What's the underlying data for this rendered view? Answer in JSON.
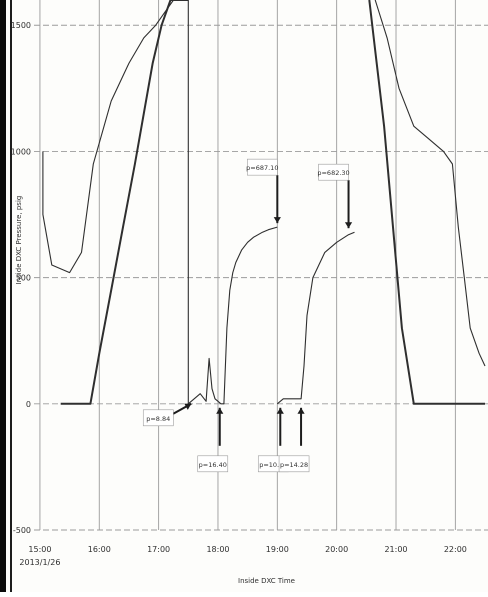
{
  "chart_data": {
    "type": "line",
    "title": "",
    "xlabel": "Inside DXC Time",
    "ylabel": "Inside DXC Pressure, psig",
    "x_ticks": [
      "15:00",
      "16:00",
      "17:00",
      "18:00",
      "19:00",
      "20:00",
      "21:00",
      "22:00"
    ],
    "x_first_sublabel": "2013/1/26",
    "y_ticks": [
      "1500",
      "1000",
      "500",
      "0",
      "-500"
    ],
    "ylim": [
      -500,
      1600
    ],
    "xlim": [
      14.9,
      22.55
    ],
    "grid": true,
    "annotations": [
      {
        "text": "p=8.84",
        "x": 17.55,
        "y": 0
      },
      {
        "text": "p=16.40",
        "x": 18.03,
        "y": 0
      },
      {
        "text": "p=687.10",
        "x": 19.0,
        "y": 700
      },
      {
        "text": "p=10.28",
        "x": 19.05,
        "y": 0
      },
      {
        "text": "p=14.28",
        "x": 19.4,
        "y": 0
      },
      {
        "text": "p=682.30",
        "x": 20.2,
        "y": 680
      }
    ],
    "series": [
      {
        "x": [
          15.35,
          15.55,
          15.7,
          15.85,
          16.0,
          16.2,
          16.4,
          16.6,
          16.75,
          16.9,
          17.05,
          17.2,
          17.3,
          17.45,
          17.5
        ],
        "y": [
          0,
          0,
          0,
          0,
          200,
          450,
          700,
          950,
          1150,
          1350,
          1500,
          1600,
          1600,
          1600,
          1600
        ]
      },
      {
        "x": [
          15.05,
          15.05,
          15.2,
          15.5,
          15.7,
          15.9,
          16.2,
          16.5,
          16.75,
          16.95,
          17.1,
          17.25
        ],
        "y": [
          1000,
          750,
          550,
          520,
          600,
          950,
          1200,
          1350,
          1450,
          1500,
          1550,
          1600
        ]
      },
      {
        "x": [
          17.5,
          17.6,
          17.7,
          17.8,
          17.85,
          17.9,
          17.95,
          18.0,
          18.05,
          18.1,
          18.15,
          18.2,
          18.25,
          18.3,
          18.4,
          18.5,
          18.6,
          18.75,
          18.85,
          19.0
        ],
        "y": [
          0,
          20,
          40,
          10,
          180,
          60,
          20,
          10,
          0,
          0,
          300,
          450,
          520,
          560,
          610,
          640,
          660,
          680,
          690,
          700
        ]
      },
      {
        "x": [
          19.0,
          19.1,
          19.3,
          19.4,
          19.45,
          19.5,
          19.6,
          19.8,
          20.0,
          20.2,
          20.3
        ],
        "y": [
          0,
          20,
          20,
          20,
          150,
          350,
          500,
          600,
          640,
          670,
          680
        ]
      },
      {
        "x": [
          20.55,
          20.65,
          20.8,
          20.95,
          21.1,
          21.3,
          21.45,
          22.0,
          22.5
        ],
        "y": [
          1600,
          1400,
          1100,
          700,
          300,
          0,
          0,
          0,
          0
        ]
      },
      {
        "x": [
          20.65,
          20.85,
          21.05,
          21.3,
          21.55,
          21.8,
          21.95,
          22.05,
          22.15,
          22.25,
          22.4,
          22.5
        ],
        "y": [
          1600,
          1450,
          1250,
          1100,
          1050,
          1000,
          950,
          700,
          500,
          300,
          200,
          150
        ]
      }
    ],
    "colors": {
      "line": "#333333",
      "grid": "#9a9a9a",
      "arrow": "#222222",
      "frame": "#111111"
    }
  }
}
